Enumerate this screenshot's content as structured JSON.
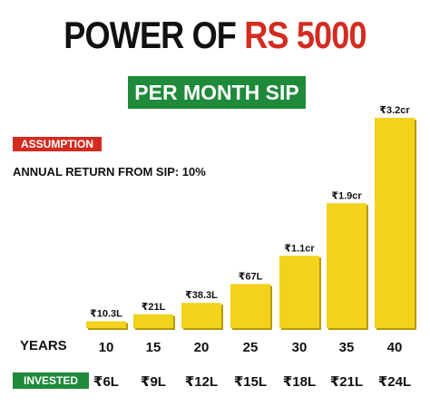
{
  "header": {
    "title_main": "POWER OF ",
    "title_accent": "RS 5000",
    "subtitle": "PER MONTH SIP"
  },
  "assumption": {
    "label": "ASSUMPTION",
    "text": "ANNUAL RETURN FROM SIP: 10%"
  },
  "rows": {
    "years_label": "YEARS",
    "invested_label": "INVESTED"
  },
  "colors": {
    "bar": "#f2d21b",
    "bar_shadow": "#b59a00",
    "green": "#1e8a3a",
    "red": "#d42b20"
  },
  "chart_data": {
    "type": "bar",
    "categories": [
      "10",
      "15",
      "20",
      "25",
      "30",
      "35",
      "40"
    ],
    "values": [
      10.3,
      21,
      38.3,
      67,
      110,
      190,
      320
    ],
    "value_unit": "lakh",
    "data_labels": [
      "₹10.3L",
      "₹21L",
      "₹38.3L",
      "₹67L",
      "₹1.1cr",
      "₹1.9cr",
      "₹3.2cr"
    ],
    "invested": [
      "₹6L",
      "₹9L",
      "₹12L",
      "₹15L",
      "₹18L",
      "₹21L",
      "₹24L"
    ],
    "xlabel": "YEARS",
    "ylabel": "",
    "grid": false,
    "legend": "none"
  }
}
